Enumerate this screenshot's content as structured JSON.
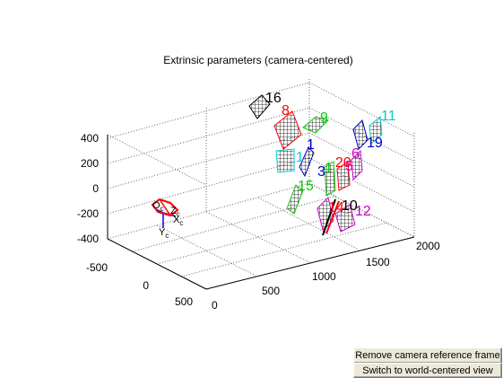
{
  "figure": {
    "title": "Extrinsic parameters (camera-centered)",
    "axes": {
      "z_ticks": [
        "400",
        "200",
        "0",
        "-200",
        "-400"
      ],
      "x_ticks": [
        "-500",
        "0",
        "500"
      ],
      "y_ticks": [
        "0",
        "500",
        "1000",
        "1500",
        "2000"
      ],
      "grid": true,
      "projection": "3D"
    },
    "camera_frame": {
      "labels": [
        "Oc",
        "Xc",
        "Yc",
        "Zc"
      ],
      "display": {
        "o": "O",
        "c": "c",
        "x": "X",
        "y": "Y",
        "z": "Z"
      }
    },
    "boards": [
      {
        "label": "16",
        "color": "#000000"
      },
      {
        "label": "8",
        "color": "#ff0000"
      },
      {
        "label": "9",
        "color": "#00cc00"
      },
      {
        "label": "11",
        "color": "#00cccc"
      },
      {
        "label": "19",
        "color": "#0000cc"
      },
      {
        "label": "1",
        "color": "#0000cc"
      },
      {
        "label": "1",
        "color": "#00cccc"
      },
      {
        "label": "3",
        "color": "#0000cc"
      },
      {
        "label": "1",
        "color": "#00cc00"
      },
      {
        "label": "20",
        "color": "#ff0000"
      },
      {
        "label": "6",
        "color": "#cc00cc"
      },
      {
        "label": "5",
        "color": "#cc00cc"
      },
      {
        "label": "15",
        "color": "#00cc00"
      },
      {
        "label": "14",
        "color": "#ff0000"
      },
      {
        "label": "10",
        "color": "#000000"
      },
      {
        "label": "12",
        "color": "#cc00cc"
      }
    ]
  },
  "buttons": {
    "remove_label": "Remove camera reference frame",
    "switch_label": "Switch to world-centered view"
  }
}
